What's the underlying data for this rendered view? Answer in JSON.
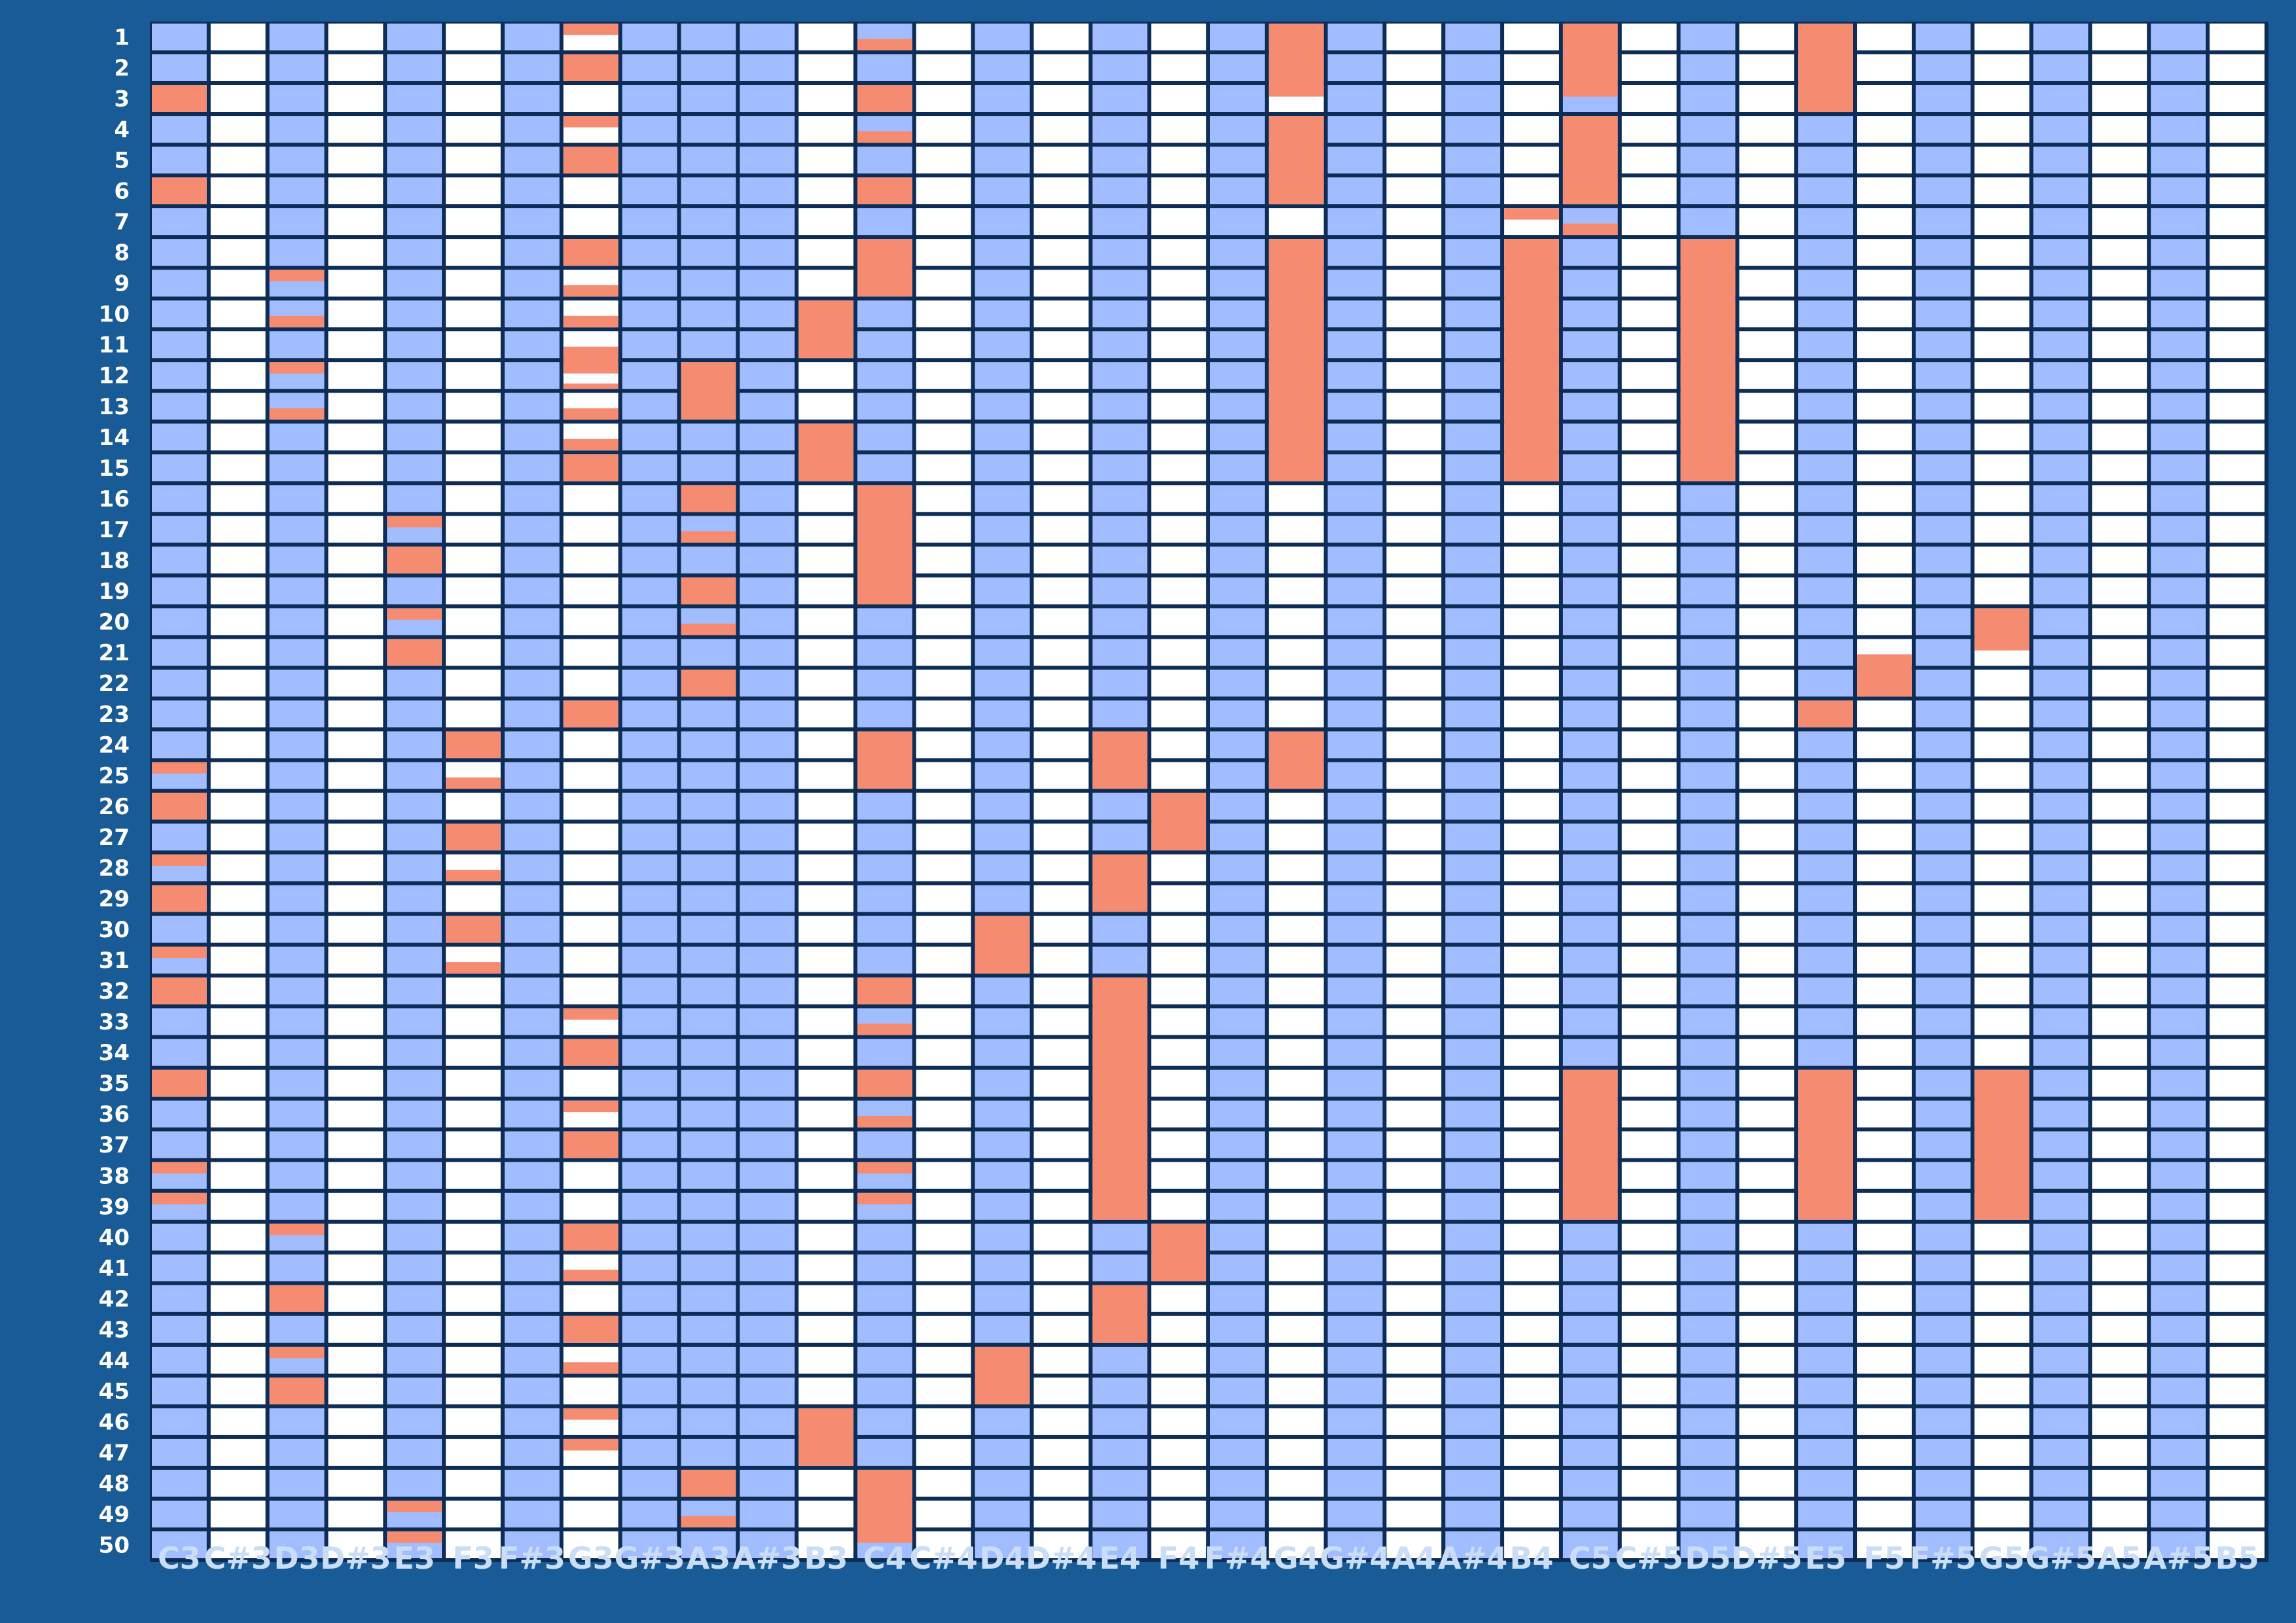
{
  "colors": {
    "background": "#185b96",
    "grid_line": "#0d2d57",
    "white_key": "#ffffff",
    "blue_key": "#a2bdff",
    "note": "#f58b71",
    "row_label": "#ffffff",
    "column_label": "#c9ddf6"
  },
  "chart_data": {
    "type": "heatmap",
    "title": "",
    "xlabel": "",
    "ylabel": "",
    "columns": [
      "C3",
      "C#3",
      "D3",
      "D#3",
      "E3",
      "F3",
      "F#3",
      "G3",
      "G#3",
      "A3",
      "A#3",
      "B3",
      "C4",
      "C#4",
      "D4",
      "D#4",
      "E4",
      "F4",
      "F#4",
      "G4",
      "G#4",
      "A4",
      "A#4",
      "B4",
      "C5",
      "C#5",
      "D5",
      "D#5",
      "E5",
      "F5",
      "F#5",
      "G5",
      "G#5",
      "A5",
      "A#5",
      "B5"
    ],
    "rows": [
      "1",
      "2",
      "3",
      "4",
      "5",
      "6",
      "7",
      "8",
      "9",
      "10",
      "11",
      "12",
      "13",
      "14",
      "15",
      "16",
      "17",
      "18",
      "19",
      "20",
      "21",
      "22",
      "23",
      "24",
      "25",
      "26",
      "27",
      "28",
      "29",
      "30",
      "31",
      "32",
      "33",
      "34",
      "35",
      "36",
      "37",
      "38",
      "39",
      "40",
      "41",
      "42",
      "43",
      "44",
      "45",
      "46",
      "47",
      "48",
      "49",
      "50"
    ],
    "column_shading": [
      "blue",
      "white",
      "blue",
      "white",
      "blue",
      "white",
      "blue",
      "white",
      "blue",
      "blue",
      "blue",
      "white",
      "blue",
      "white",
      "blue",
      "white",
      "blue",
      "white",
      "blue",
      "white",
      "blue",
      "white",
      "blue",
      "white",
      "blue",
      "white",
      "blue",
      "white",
      "blue",
      "white",
      "blue",
      "white",
      "blue",
      "white",
      "blue",
      "white"
    ],
    "notes_note": "each note: [column, start_row, end_row] with fractional row positions; row r spans r-1 to r",
    "notes": [
      [
        "C3",
        2.0,
        3.0
      ],
      [
        "C3",
        5.0,
        6.0
      ],
      [
        "C3",
        24.0,
        24.5
      ],
      [
        "C3",
        25.0,
        26.0
      ],
      [
        "C3",
        27.0,
        27.5
      ],
      [
        "C3",
        28.0,
        29.0
      ],
      [
        "C3",
        30.0,
        30.5
      ],
      [
        "C3",
        31.0,
        32.0
      ],
      [
        "C3",
        34.0,
        35.0
      ],
      [
        "C3",
        37.0,
        37.5
      ],
      [
        "C3",
        38.0,
        38.5
      ],
      [
        "D3",
        8.0,
        8.5
      ],
      [
        "D3",
        9.5,
        10.0
      ],
      [
        "D3",
        11.0,
        11.5
      ],
      [
        "D3",
        12.5,
        13.0
      ],
      [
        "D3",
        39.0,
        39.5
      ],
      [
        "D3",
        41.0,
        42.0
      ],
      [
        "D3",
        43.0,
        43.5
      ],
      [
        "D3",
        44.0,
        45.0
      ],
      [
        "E3",
        16.0,
        16.5
      ],
      [
        "E3",
        17.0,
        18.0
      ],
      [
        "E3",
        19.0,
        19.5
      ],
      [
        "E3",
        20.0,
        21.0
      ],
      [
        "E3",
        48.0,
        48.5
      ],
      [
        "E3",
        49.0,
        49.5
      ],
      [
        "F3",
        23.0,
        24.0
      ],
      [
        "F3",
        24.5,
        25.0
      ],
      [
        "F3",
        26.0,
        27.0
      ],
      [
        "F3",
        27.5,
        28.0
      ],
      [
        "F3",
        29.0,
        30.0
      ],
      [
        "F3",
        30.5,
        31.0
      ],
      [
        "G3",
        0.0,
        0.5
      ],
      [
        "G3",
        1.0,
        2.0
      ],
      [
        "G3",
        3.0,
        3.5
      ],
      [
        "G3",
        4.0,
        5.0
      ],
      [
        "G3",
        7.0,
        8.0
      ],
      [
        "G3",
        8.5,
        9.0
      ],
      [
        "G3",
        9.5,
        10.0
      ],
      [
        "G3",
        10.5,
        11.5
      ],
      [
        "G3",
        11.7,
        12.0
      ],
      [
        "G3",
        12.5,
        13.0
      ],
      [
        "G3",
        13.5,
        14.0
      ],
      [
        "G3",
        14.0,
        15.0
      ],
      [
        "G3",
        22.0,
        23.0
      ],
      [
        "G3",
        32.0,
        32.5
      ],
      [
        "G3",
        33.0,
        34.0
      ],
      [
        "G3",
        35.0,
        35.5
      ],
      [
        "G3",
        36.0,
        37.0
      ],
      [
        "G3",
        39.0,
        40.0
      ],
      [
        "G3",
        40.5,
        41.0
      ],
      [
        "G3",
        42.0,
        43.0
      ],
      [
        "G3",
        43.5,
        44.0
      ],
      [
        "G3",
        45.0,
        45.5
      ],
      [
        "G3",
        46.0,
        46.5
      ],
      [
        "A3",
        11.0,
        13.0
      ],
      [
        "A3",
        15.0,
        16.0
      ],
      [
        "A3",
        16.5,
        17.0
      ],
      [
        "A3",
        18.0,
        19.0
      ],
      [
        "A3",
        19.5,
        20.0
      ],
      [
        "A3",
        21.0,
        22.0
      ],
      [
        "A3",
        47.0,
        48.0
      ],
      [
        "A3",
        48.5,
        49.0
      ],
      [
        "B3",
        9.0,
        11.0
      ],
      [
        "B3",
        13.0,
        15.0
      ],
      [
        "B3",
        45.0,
        47.0
      ],
      [
        "C4",
        0.5,
        1.0
      ],
      [
        "C4",
        2.0,
        3.0
      ],
      [
        "C4",
        3.5,
        4.0
      ],
      [
        "C4",
        5.0,
        6.0
      ],
      [
        "C4",
        7.0,
        9.0
      ],
      [
        "C4",
        15.0,
        19.0
      ],
      [
        "C4",
        23.0,
        25.0
      ],
      [
        "C4",
        31.0,
        32.0
      ],
      [
        "C4",
        32.5,
        33.0
      ],
      [
        "C4",
        34.0,
        35.0
      ],
      [
        "C4",
        35.5,
        36.0
      ],
      [
        "C4",
        37.0,
        37.5
      ],
      [
        "C4",
        38.0,
        38.5
      ],
      [
        "C4",
        47.0,
        49.5
      ],
      [
        "D4",
        29.0,
        31.0
      ],
      [
        "D4",
        43.0,
        45.0
      ],
      [
        "E4",
        23.0,
        25.0
      ],
      [
        "E4",
        27.0,
        29.0
      ],
      [
        "E4",
        31.0,
        39.0
      ],
      [
        "E4",
        41.0,
        43.0
      ],
      [
        "F4",
        25.0,
        27.0
      ],
      [
        "F4",
        39.0,
        41.0
      ],
      [
        "G4",
        0.0,
        2.5
      ],
      [
        "G4",
        3.0,
        6.0
      ],
      [
        "G4",
        7.0,
        15.0
      ],
      [
        "G4",
        23.0,
        25.0
      ],
      [
        "B4",
        6.0,
        6.5
      ],
      [
        "B4",
        7.0,
        15.0
      ],
      [
        "C5",
        0.0,
        2.5
      ],
      [
        "C5",
        3.0,
        6.0
      ],
      [
        "C5",
        6.5,
        7.0
      ],
      [
        "C5",
        34.0,
        39.0
      ],
      [
        "D5",
        7.0,
        15.0
      ],
      [
        "E5",
        0.0,
        3.0
      ],
      [
        "E5",
        22.0,
        23.0
      ],
      [
        "E5",
        34.0,
        39.0
      ],
      [
        "F5",
        20.5,
        22.0
      ],
      [
        "G5",
        19.0,
        20.5
      ],
      [
        "G5",
        34.0,
        39.0
      ]
    ]
  }
}
